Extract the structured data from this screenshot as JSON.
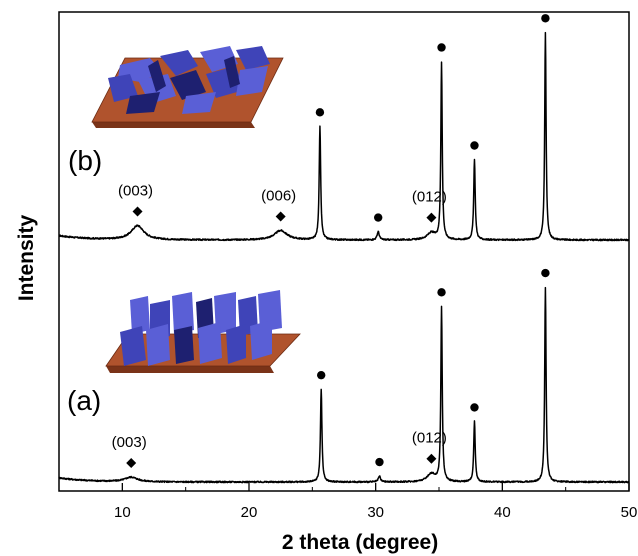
{
  "chart_data": {
    "type": "line",
    "title": "",
    "xlabel": "2 theta (degree)",
    "ylabel": "Intensity",
    "xlim": [
      5,
      50
    ],
    "xticks": [
      10,
      20,
      30,
      40,
      50
    ],
    "y_axis_ticks": false,
    "grid": false,
    "colors": {
      "line": "#000000",
      "plate_top": "#b0532d",
      "plate_side": "#7a3318",
      "crystal_light": "#5a5fd6",
      "crystal_mid": "#3f44b8",
      "crystal_dark": "#1e2070"
    },
    "series": [
      {
        "panel_label": "(b)",
        "peaks": [
          {
            "x": 11.2,
            "height": 0.06,
            "width": 1.2
          },
          {
            "x": 22.5,
            "height": 0.04,
            "width": 1.2
          },
          {
            "x": 25.6,
            "height": 0.48,
            "width": 0.14
          },
          {
            "x": 30.2,
            "height": 0.035,
            "width": 0.2
          },
          {
            "x": 34.4,
            "height": 0.03,
            "width": 0.8
          },
          {
            "x": 35.2,
            "height": 0.75,
            "width": 0.13
          },
          {
            "x": 37.8,
            "height": 0.34,
            "width": 0.14
          },
          {
            "x": 43.4,
            "height": 0.88,
            "width": 0.13
          }
        ],
        "annotations": [
          {
            "x": 11.2,
            "label": "(003)",
            "marker": "diamond"
          },
          {
            "x": 22.5,
            "label": "(006)",
            "marker": "diamond"
          },
          {
            "x": 34.4,
            "label": "(012)",
            "marker": "diamond"
          },
          {
            "x": 25.6,
            "marker": "circle"
          },
          {
            "x": 30.2,
            "marker": "circle"
          },
          {
            "x": 35.2,
            "marker": "circle"
          },
          {
            "x": 37.8,
            "marker": "circle"
          },
          {
            "x": 43.4,
            "marker": "circle"
          }
        ]
      },
      {
        "panel_label": "(a)",
        "peaks": [
          {
            "x": 10.7,
            "height": 0.02,
            "width": 1.2
          },
          {
            "x": 25.7,
            "height": 0.4,
            "width": 0.14
          },
          {
            "x": 30.3,
            "height": 0.025,
            "width": 0.2
          },
          {
            "x": 34.4,
            "height": 0.035,
            "width": 0.8
          },
          {
            "x": 35.2,
            "height": 0.75,
            "width": 0.13
          },
          {
            "x": 37.8,
            "height": 0.26,
            "width": 0.14
          },
          {
            "x": 43.4,
            "height": 0.84,
            "width": 0.13
          }
        ],
        "annotations": [
          {
            "x": 10.7,
            "label": "(003)",
            "marker": "diamond"
          },
          {
            "x": 34.4,
            "label": "(012)",
            "marker": "diamond"
          },
          {
            "x": 25.7,
            "marker": "circle"
          },
          {
            "x": 30.3,
            "marker": "circle"
          },
          {
            "x": 35.2,
            "marker": "circle"
          },
          {
            "x": 37.8,
            "marker": "circle"
          },
          {
            "x": 43.4,
            "marker": "circle"
          }
        ]
      }
    ]
  }
}
